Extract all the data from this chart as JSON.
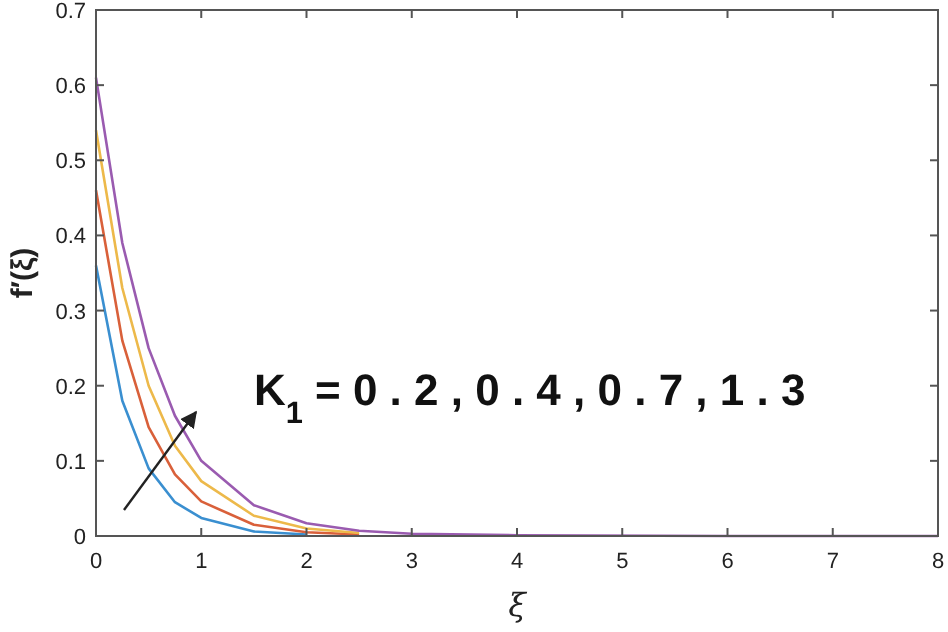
{
  "chart_data": {
    "type": "line",
    "xlabel": "ξ",
    "ylabel": "f′(ξ)",
    "x": [
      0,
      0.25,
      0.5,
      0.75,
      1,
      1.5,
      2,
      2.5,
      3,
      4,
      6,
      8
    ],
    "series": [
      {
        "color": "#3a8fd0",
        "x": [
          0,
          0.25,
          0.5,
          0.75,
          1,
          1.5,
          2
        ],
        "values": [
          0.36,
          0.18,
          0.09,
          0.045,
          0.024,
          0.006,
          0.002
        ]
      },
      {
        "color": "#d9603a",
        "x": [
          0,
          0.25,
          0.5,
          0.75,
          1,
          1.5,
          2,
          2.5
        ],
        "values": [
          0.46,
          0.26,
          0.145,
          0.082,
          0.046,
          0.015,
          0.005,
          0.002
        ]
      },
      {
        "color": "#edb94a",
        "x": [
          0,
          0.25,
          0.5,
          0.75,
          1,
          1.5,
          2,
          2.5
        ],
        "values": [
          0.54,
          0.33,
          0.2,
          0.12,
          0.073,
          0.027,
          0.01,
          0.004
        ]
      },
      {
        "color": "#9a5bb0",
        "values": [
          0.61,
          0.39,
          0.25,
          0.16,
          0.1,
          0.041,
          0.017,
          0.007,
          0.003,
          0.001,
          0,
          0
        ]
      }
    ],
    "xlim": [
      0,
      8
    ],
    "xticks": [
      0,
      1,
      2,
      3,
      4,
      5,
      6,
      7,
      8
    ],
    "ylim": [
      0,
      0.7
    ],
    "yticks": [
      0,
      0.1,
      0.2,
      0.3,
      0.4,
      0.5,
      0.6,
      0.7
    ],
    "annotations": [
      "K$_{1}$ = 0 . 2 , 0 . 4 , 0 . 7 , 1 . 3"
    ],
    "grid": false,
    "marker": "none",
    "line_style": "solid"
  }
}
